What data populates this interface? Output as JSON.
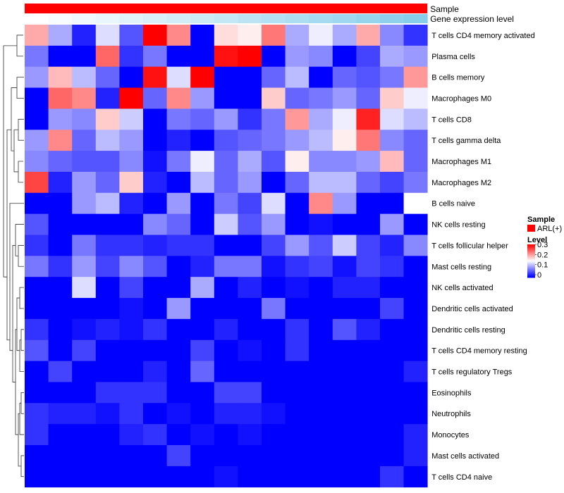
{
  "chart_data": {
    "type": "heatmap",
    "annotation_rows": [
      {
        "name": "Sample",
        "type": "categorical",
        "color": "#ff0000"
      },
      {
        "name": "Gene expression level",
        "type": "gradient",
        "from_color": "#ffffff",
        "to_color": "#87ceeb"
      }
    ],
    "rows": [
      "T cells CD4 memory activated",
      "Plasma cells",
      "B cells memory",
      "Macrophages M0",
      "T cells CD8",
      "T cells gamma delta",
      "Macrophages M1",
      "Macrophages M2",
      "B cells naive",
      "NK cells resting",
      "T cells follicular helper",
      "Mast cells resting",
      "NK cells activated",
      "Dendritic cells activated",
      "Dendritic cells resting",
      "T cells CD4 memory resting",
      "T cells regulatory  Tregs",
      "Eosinophils",
      "Neutrophils",
      "Monocytes",
      "Mast cells activated",
      "T cells CD4 naive"
    ],
    "n_columns": 17,
    "values": [
      [
        0.2,
        0.1,
        0.02,
        0.13,
        0.05,
        0.3,
        0.22,
        0.0,
        0.17,
        0.16,
        0.23,
        0.1,
        0.14,
        0.1,
        0.2,
        0.08,
        0.03
      ],
      [
        0.07,
        0.0,
        0.0,
        0.24,
        0.03,
        0.07,
        0.0,
        0.0,
        0.29,
        0.3,
        0.0,
        0.09,
        0.08,
        0.0,
        0.04,
        0.1,
        0.09
      ],
      [
        0.09,
        0.19,
        0.11,
        0.06,
        0.0,
        0.29,
        0.13,
        0.3,
        0.0,
        0.0,
        0.06,
        0.11,
        0.0,
        0.06,
        0.05,
        0.07,
        0.21
      ],
      [
        0.0,
        0.24,
        0.22,
        0.02,
        0.3,
        0.06,
        0.22,
        0.09,
        0.0,
        0.0,
        0.18,
        0.06,
        0.07,
        0.09,
        0.06,
        0.18,
        0.14
      ],
      [
        0.0,
        0.09,
        0.08,
        0.18,
        0.12,
        0.0,
        0.07,
        0.06,
        0.09,
        0.03,
        0.07,
        0.21,
        0.1,
        0.14,
        0.28,
        0.13,
        0.11
      ],
      [
        0.09,
        0.22,
        0.06,
        0.11,
        0.09,
        0.0,
        0.02,
        0.0,
        0.05,
        0.06,
        0.07,
        0.09,
        0.11,
        0.16,
        0.23,
        0.08,
        0.06
      ],
      [
        0.08,
        0.06,
        0.05,
        0.05,
        0.08,
        0.01,
        0.07,
        0.14,
        0.06,
        0.1,
        0.05,
        0.16,
        0.08,
        0.08,
        0.09,
        0.19,
        0.06
      ],
      [
        0.26,
        0.02,
        0.09,
        0.06,
        0.18,
        0.02,
        0.0,
        0.11,
        0.06,
        0.09,
        0.0,
        0.06,
        0.11,
        0.11,
        0.06,
        0.04,
        0.07
      ],
      [
        0.0,
        0.0,
        0.09,
        0.11,
        0.02,
        0.0,
        0.09,
        0.0,
        0.07,
        0.04,
        0.13,
        0.0,
        0.22,
        0.09,
        0.0,
        0.0,
        0.15
      ],
      [
        0.05,
        0.0,
        0.0,
        0.0,
        0.0,
        0.08,
        0.06,
        0.0,
        0.12,
        0.05,
        0.09,
        0.0,
        0.01,
        0.0,
        0.0,
        0.09,
        0.0
      ],
      [
        0.03,
        0.0,
        0.07,
        0.03,
        0.03,
        0.02,
        0.03,
        0.03,
        0.0,
        0.0,
        0.04,
        0.09,
        0.05,
        0.12,
        0.04,
        0.02,
        0.08
      ],
      [
        0.07,
        0.03,
        0.09,
        0.04,
        0.08,
        0.05,
        0.0,
        0.02,
        0.07,
        0.07,
        0.01,
        0.03,
        0.04,
        0.01,
        0.04,
        0.03,
        0.0
      ],
      [
        0.0,
        0.0,
        0.13,
        0.0,
        0.04,
        0.0,
        0.0,
        0.1,
        0.0,
        0.02,
        0.0,
        0.01,
        0.0,
        0.02,
        0.02,
        0.0,
        0.0
      ],
      [
        0.0,
        0.0,
        0.0,
        0.0,
        0.01,
        0.0,
        0.09,
        0.0,
        0.0,
        0.0,
        0.07,
        0.0,
        0.0,
        0.0,
        0.0,
        0.04,
        0.0
      ],
      [
        0.03,
        0.0,
        0.01,
        0.02,
        0.01,
        0.03,
        0.0,
        0.0,
        0.02,
        0.0,
        0.0,
        0.03,
        0.0,
        0.05,
        0.02,
        0.0,
        0.0
      ],
      [
        0.05,
        0.0,
        0.04,
        0.0,
        0.0,
        0.0,
        0.0,
        0.04,
        0.0,
        0.01,
        0.0,
        0.03,
        0.0,
        0.0,
        0.0,
        0.0,
        0.0
      ],
      [
        0.0,
        0.04,
        0.0,
        0.0,
        0.0,
        0.02,
        0.0,
        0.06,
        0.0,
        0.0,
        0.0,
        0.0,
        0.0,
        0.0,
        0.0,
        0.0,
        0.02
      ],
      [
        0.0,
        0.0,
        0.0,
        0.03,
        0.03,
        0.03,
        0.0,
        0.0,
        0.04,
        0.04,
        0.0,
        0.0,
        0.0,
        0.0,
        0.0,
        0.0,
        0.0
      ],
      [
        0.03,
        0.02,
        0.02,
        0.01,
        0.03,
        0.0,
        0.01,
        0.0,
        0.02,
        0.02,
        0.01,
        0.0,
        0.0,
        0.0,
        0.0,
        0.0,
        0.0
      ],
      [
        0.03,
        0.0,
        0.0,
        0.0,
        0.02,
        0.03,
        0.0,
        0.01,
        0.0,
        0.01,
        0.0,
        0.0,
        0.0,
        0.0,
        0.0,
        0.0,
        0.02
      ],
      [
        0.0,
        0.0,
        0.0,
        0.0,
        0.0,
        0.0,
        0.04,
        0.0,
        0.0,
        0.0,
        0.0,
        0.0,
        0.0,
        0.0,
        0.0,
        0.0,
        0.02
      ],
      [
        0.0,
        0.0,
        0.0,
        0.0,
        0.0,
        0.0,
        0.0,
        0.0,
        0.01,
        0.0,
        0.0,
        0.0,
        0.0,
        0.0,
        0.0,
        0.03,
        0.0
      ]
    ],
    "color_scale": {
      "min": 0,
      "mid": 0.15,
      "max": 0.3,
      "low_color": "#0000ff",
      "mid_color": "#ffffff",
      "high_color": "#ff0000"
    },
    "legend": {
      "sample_title": "Sample",
      "sample_entry": "ARL(+)",
      "level_title": "Level",
      "level_ticks": [
        "0.3",
        "0.2",
        "0.1",
        "0"
      ],
      "placement": "right"
    },
    "dendrogram": "rows",
    "title": "",
    "xlabel": "",
    "ylabel": ""
  }
}
